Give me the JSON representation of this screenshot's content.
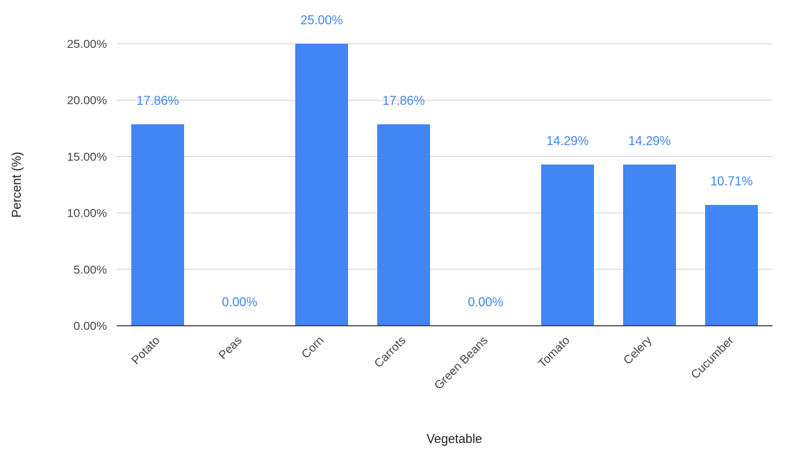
{
  "chart_data": {
    "type": "bar",
    "title": "",
    "xlabel": "Vegetable",
    "ylabel": "Percent (%)",
    "categories": [
      "Potato",
      "Peas",
      "Corn",
      "Carrots",
      "Green Beans",
      "Tomato",
      "Celery",
      "Cucumber"
    ],
    "series": [
      {
        "values": [
          17.86,
          0,
          25,
          17.86,
          0,
          14.29,
          14.29,
          10.71
        ],
        "data_labels": [
          "17.86%",
          "0.00%",
          "25.00%",
          "17.86%",
          "0.00%",
          "14.29%",
          "14.29%",
          "10.71%"
        ]
      }
    ],
    "ylim": [
      0,
      25
    ],
    "yticks": [
      0,
      5,
      10,
      15,
      20,
      25
    ],
    "ytick_labels": [
      "0.00%",
      "5.00%",
      "10.00%",
      "15.00%",
      "20.00%",
      "25.00%"
    ],
    "grid": true,
    "legend": "none",
    "colors": {
      "bar": "#4285f4",
      "data_label": "#4285f4",
      "grid": "#cccccc",
      "axis": "#333333"
    }
  }
}
